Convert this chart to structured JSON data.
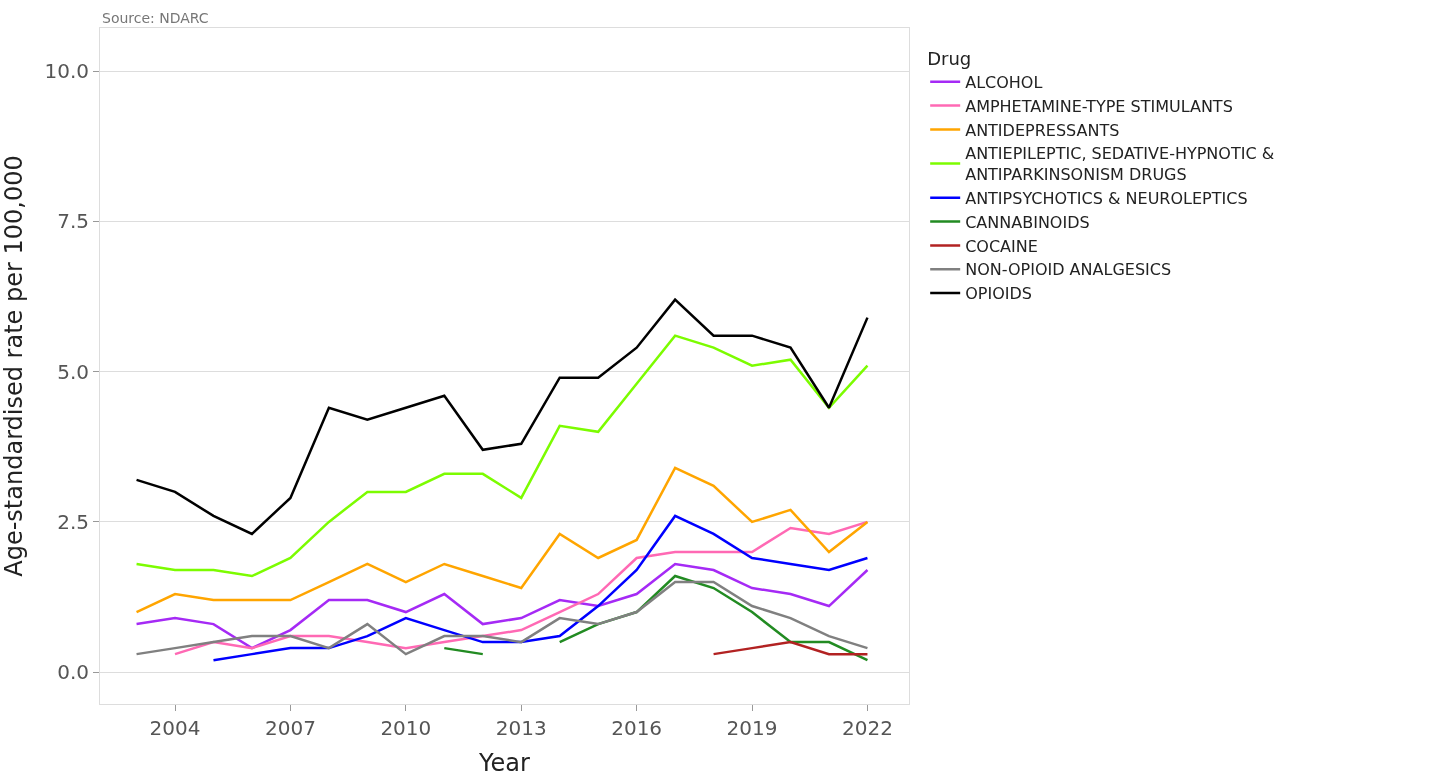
{
  "chart_data": {
    "type": "line",
    "xlabel": "Year",
    "ylabel": "Age-standardised rate per 100,000",
    "legend_title": "Drug",
    "annotations": [
      "Source: NDARC"
    ],
    "x": [
      2003,
      2004,
      2005,
      2006,
      2007,
      2008,
      2009,
      2010,
      2011,
      2012,
      2013,
      2014,
      2015,
      2016,
      2017,
      2018,
      2019,
      2020,
      2021,
      2022
    ],
    "series": [
      {
        "name": "ALCOHOL",
        "color": "#a52af5",
        "values": [
          0.8,
          0.9,
          0.8,
          0.4,
          0.7,
          1.2,
          1.2,
          1.0,
          1.3,
          0.8,
          0.9,
          1.2,
          1.1,
          1.3,
          1.8,
          1.7,
          1.4,
          1.3,
          1.1,
          1.7
        ]
      },
      {
        "name": "AMPHETAMINE-TYPE STIMULANTS",
        "color": "#ff69b4",
        "values": [
          null,
          0.3,
          0.5,
          0.4,
          0.6,
          0.6,
          0.5,
          0.4,
          0.5,
          0.6,
          0.7,
          1.0,
          1.3,
          1.9,
          2.0,
          2.0,
          2.0,
          2.4,
          2.3,
          2.5
        ]
      },
      {
        "name": "ANTIDEPRESSANTS",
        "color": "#ffa500",
        "values": [
          1.0,
          1.3,
          1.2,
          1.2,
          1.2,
          1.5,
          1.8,
          1.5,
          1.8,
          1.6,
          1.4,
          2.3,
          1.9,
          2.2,
          3.4,
          3.1,
          2.5,
          2.7,
          2.0,
          2.5
        ]
      },
      {
        "name": "ANTIEPILEPTIC, SEDATIVE-HYPNOTIC & ANTIPARKINSONISM DRUGS",
        "color": "#7cfc00",
        "values": [
          1.8,
          1.7,
          1.7,
          1.6,
          1.9,
          2.5,
          3.0,
          3.0,
          3.3,
          3.3,
          2.9,
          4.1,
          4.0,
          4.8,
          5.6,
          5.4,
          5.1,
          5.2,
          4.4,
          5.1
        ]
      },
      {
        "name": "ANTIPSYCHOTICS & NEUROLEPTICS",
        "color": "#0000ff",
        "values": [
          null,
          null,
          0.2,
          0.3,
          0.4,
          0.4,
          0.6,
          0.9,
          0.7,
          0.5,
          0.5,
          0.6,
          1.1,
          1.7,
          2.6,
          2.3,
          1.9,
          1.8,
          1.7,
          1.9
        ]
      },
      {
        "name": "CANNABINOIDS",
        "color": "#228b22",
        "values": [
          null,
          null,
          null,
          null,
          null,
          null,
          null,
          null,
          0.4,
          0.3,
          null,
          0.5,
          0.8,
          1.0,
          1.6,
          1.4,
          1.0,
          0.5,
          0.5,
          0.2
        ]
      },
      {
        "name": "COCAINE",
        "color": "#b22222",
        "values": [
          null,
          null,
          null,
          null,
          null,
          null,
          null,
          null,
          null,
          null,
          null,
          null,
          null,
          null,
          null,
          0.3,
          0.4,
          0.5,
          0.3,
          0.3
        ]
      },
      {
        "name": "NON-OPIOID ANALGESICS",
        "color": "#808080",
        "values": [
          0.3,
          0.4,
          0.5,
          0.6,
          0.6,
          0.4,
          0.8,
          0.3,
          0.6,
          0.6,
          0.5,
          0.9,
          0.8,
          1.0,
          1.5,
          1.5,
          1.1,
          0.9,
          0.6,
          0.4
        ]
      },
      {
        "name": "OPIOIDS",
        "color": "#000000",
        "values": [
          3.2,
          3.0,
          2.6,
          2.3,
          2.9,
          4.4,
          4.2,
          4.4,
          4.6,
          3.7,
          3.8,
          4.9,
          4.9,
          5.4,
          6.2,
          5.6,
          5.6,
          5.4,
          4.4,
          5.9
        ]
      }
    ],
    "xlim": [
      2002.05,
      2023.08
    ],
    "xticks": [
      2004,
      2007,
      2010,
      2013,
      2016,
      2019,
      2022
    ],
    "ylim": [
      -0.53,
      10.72
    ],
    "yticks": [
      {
        "value": 0,
        "label": "0.0"
      },
      {
        "value": 2.5,
        "label": "2.5"
      },
      {
        "value": 5,
        "label": "5.0"
      },
      {
        "value": 7.5,
        "label": "7.5"
      },
      {
        "value": 10,
        "label": "10.0"
      }
    ],
    "grid": "y",
    "legend": "right",
    "line_style": "solid"
  }
}
